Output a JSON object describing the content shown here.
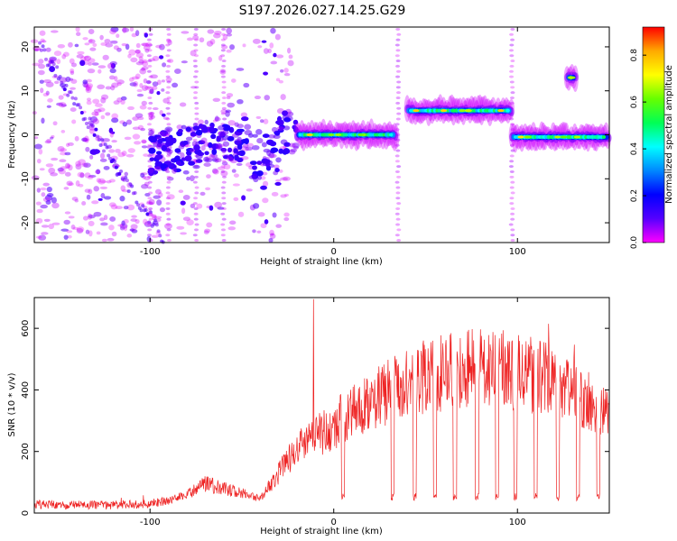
{
  "title": "S197.2026.027.14.25.G29",
  "chart_data": [
    {
      "type": "heatmap",
      "name": "spectrogram",
      "xlabel": "Height of straight line (km)",
      "ylabel": "Frequency (Hz)",
      "xlim": [
        -163,
        150
      ],
      "ylim": [
        -24.5,
        24.5
      ],
      "xticks": [
        -100,
        0,
        100
      ],
      "yticks": [
        -20,
        -10,
        0,
        10,
        20
      ],
      "colorbar": {
        "label": "Normalized spectral amplitude",
        "range": [
          0,
          0.92
        ],
        "ticks": [
          0,
          0.2,
          0.4,
          0.6,
          0.8
        ],
        "colormap": [
          "#ff00ff",
          "#5500ff",
          "#0000ff",
          "#0088ff",
          "#00ffff",
          "#00ff55",
          "#66ff00",
          "#ffff00",
          "#ffaa00",
          "#ff0000"
        ]
      },
      "features": [
        {
          "segment": "high-altitude band",
          "x_range": [
            40,
            97
          ],
          "freq_hz": 5.5,
          "peak_amplitude": 0.85
        },
        {
          "segment": "mid band",
          "x_range": [
            -20,
            34
          ],
          "freq_hz": 0,
          "peak_amplitude": 0.8
        },
        {
          "segment": "upper right band",
          "x_range": [
            97,
            150
          ],
          "freq_hz": -0.5,
          "peak_amplitude": 0.75
        },
        {
          "segment": "isolated spot",
          "x_range": [
            127,
            132
          ],
          "freq_hz": 13,
          "peak_amplitude": 0.7
        },
        {
          "segment": "low-altitude scatter",
          "x_range": [
            -163,
            -30
          ],
          "freq_hz_range": [
            -24,
            24
          ],
          "peak_amplitude": 0.4
        }
      ]
    },
    {
      "type": "line",
      "name": "snr",
      "xlabel": "Height of straight line (km)",
      "ylabel": "SNR (10 * v/v)",
      "xlim": [
        -163,
        150
      ],
      "ylim": [
        0,
        700
      ],
      "xticks": [
        -100,
        0,
        100
      ],
      "yticks": [
        0,
        200,
        400,
        600
      ],
      "color": "#ee2222",
      "profile": {
        "x": [
          -163,
          -140,
          -120,
          -100,
          -90,
          -80,
          -70,
          -60,
          -50,
          -40,
          -30,
          -20,
          -10,
          0,
          10,
          20,
          30,
          40,
          50,
          60,
          70,
          80,
          90,
          100,
          110,
          120,
          130,
          140,
          150
        ],
        "y": [
          28,
          26,
          26,
          30,
          40,
          60,
          95,
          80,
          65,
          45,
          130,
          210,
          245,
          285,
          330,
          365,
          395,
          420,
          440,
          455,
          465,
          470,
          468,
          460,
          445,
          425,
          400,
          370,
          320
        ]
      },
      "spikes": [
        {
          "x": -11,
          "y": 695
        }
      ],
      "dropouts_x": [
        5,
        32,
        44,
        55,
        66,
        78,
        89,
        99,
        110,
        122,
        133,
        144
      ]
    }
  ]
}
